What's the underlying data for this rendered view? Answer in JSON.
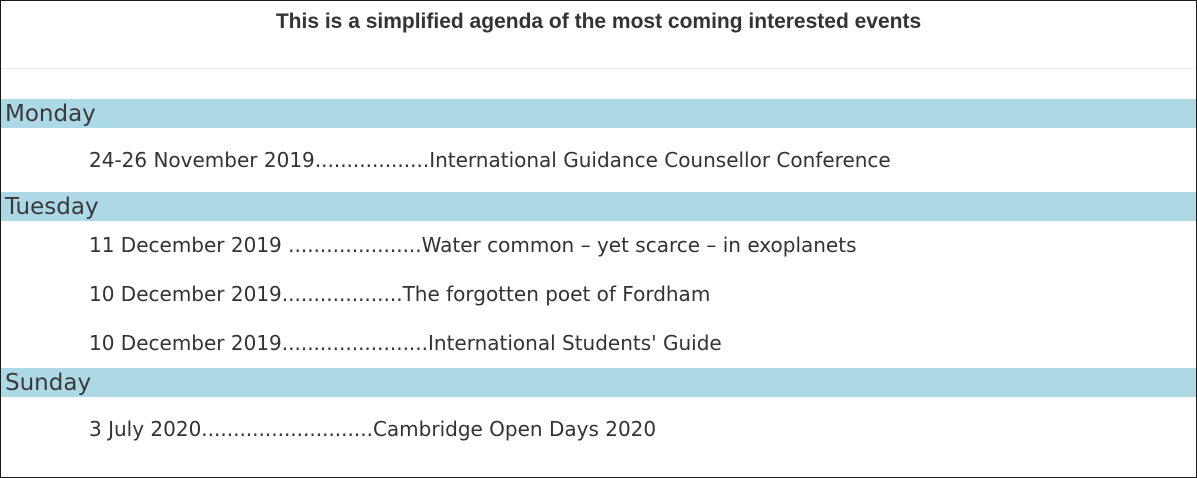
{
  "header": {
    "title": "This is a simplified agenda of the most coming interested events"
  },
  "agenda": [
    {
      "day": "Monday",
      "events": [
        "24-26 November 2019..................International Guidance Counsellor Conference"
      ]
    },
    {
      "day": "Tuesday",
      "events": [
        "11 December 2019 .....................Water common – yet scarce – in exoplanets",
        "10 December 2019...................The forgotten poet of Fordham",
        "10 December 2019.......................International Students' Guide"
      ]
    },
    {
      "day": "Sunday",
      "events": [
        "3 July 2020...........................Cambridge Open Days 2020"
      ]
    }
  ],
  "colors": {
    "day_bar": "#add8e6",
    "text": "#333333"
  }
}
